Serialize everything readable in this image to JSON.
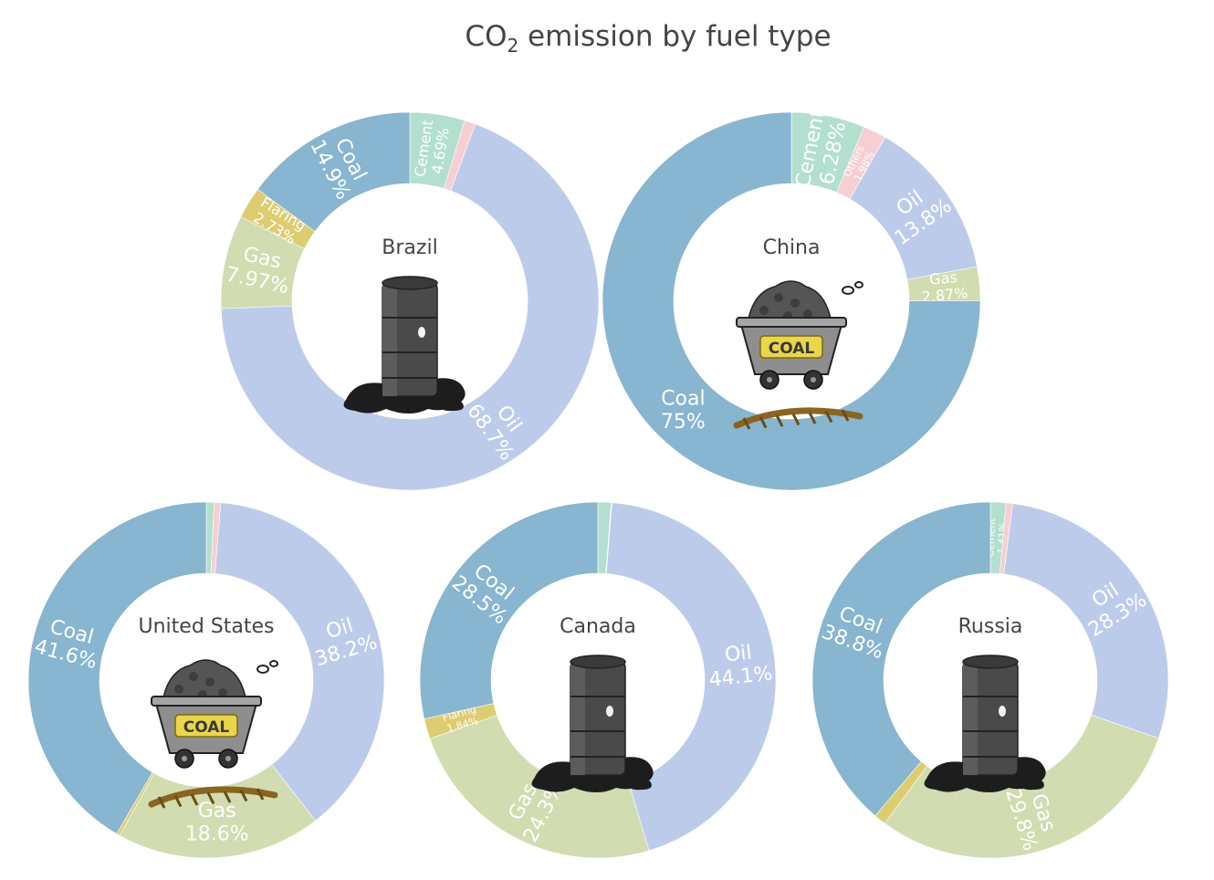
{
  "title": {
    "prefix": "CO",
    "subscript": "2",
    "suffix": " emission by fuel type"
  },
  "colors": {
    "Cement": "#b3dfcf",
    "Others": "#f6cfd2",
    "Oil": "#bdcbeb",
    "Gas": "#d1dcb0",
    "Flaring": "#ddcc70",
    "Coal": "#88b5cf"
  },
  "chart_data": [
    {
      "type": "pie",
      "hole": true,
      "country": "Brazil",
      "center_icon": "oil-barrel-icon",
      "slices": [
        {
          "label": "Cement",
          "value": 4.69,
          "text": "4.69%"
        },
        {
          "label": "Others",
          "value": 0.94,
          "text": ""
        },
        {
          "label": "Oil",
          "value": 68.7,
          "text": "68.7%"
        },
        {
          "label": "Gas",
          "value": 7.97,
          "text": "7.97%"
        },
        {
          "label": "Flaring",
          "value": 2.73,
          "text": "2.73%"
        },
        {
          "label": "Coal",
          "value": 14.9,
          "text": "14.9%"
        }
      ]
    },
    {
      "type": "pie",
      "hole": true,
      "country": "China",
      "center_icon": "coal-cart-icon",
      "slices": [
        {
          "label": "Cement",
          "value": 6.28,
          "text": "6.28%"
        },
        {
          "label": "Others",
          "value": 1.98,
          "text": "1.98%"
        },
        {
          "label": "Oil",
          "value": 13.8,
          "text": "13.8%"
        },
        {
          "label": "Gas",
          "value": 2.87,
          "text": "2.87%"
        },
        {
          "label": "Coal",
          "value": 75,
          "text": "75%"
        }
      ]
    },
    {
      "type": "pie",
      "hole": true,
      "country": "United States",
      "center_icon": "coal-cart-icon",
      "slices": [
        {
          "label": "Cement",
          "value": 0.7,
          "text": ""
        },
        {
          "label": "Others",
          "value": 0.6,
          "text": ""
        },
        {
          "label": "Oil",
          "value": 38.2,
          "text": "38.2%"
        },
        {
          "label": "Gas",
          "value": 18.6,
          "text": "18.6%"
        },
        {
          "label": "Flaring",
          "value": 0.3,
          "text": ""
        },
        {
          "label": "Coal",
          "value": 41.6,
          "text": "41.6%"
        }
      ]
    },
    {
      "type": "pie",
      "hole": true,
      "country": "Canada",
      "center_icon": "oil-barrel-icon",
      "slices": [
        {
          "label": "Cement",
          "value": 1.2,
          "text": ""
        },
        {
          "label": "Others",
          "value": 0.06,
          "text": ""
        },
        {
          "label": "Oil",
          "value": 44.1,
          "text": "44.1%"
        },
        {
          "label": "Gas",
          "value": 24.3,
          "text": "24.3%"
        },
        {
          "label": "Flaring",
          "value": 1.84,
          "text": "1.84%"
        },
        {
          "label": "Coal",
          "value": 28.5,
          "text": "28.5%"
        }
      ]
    },
    {
      "type": "pie",
      "hole": true,
      "country": "Russia",
      "center_icon": "oil-barrel-icon",
      "slices": [
        {
          "label": "Cement",
          "value": 1.41,
          "text": "1.41%"
        },
        {
          "label": "Others",
          "value": 0.6,
          "text": ""
        },
        {
          "label": "Oil",
          "value": 28.3,
          "text": "28.3%"
        },
        {
          "label": "Gas",
          "value": 29.8,
          "text": "29.8%"
        },
        {
          "label": "Flaring",
          "value": 1.09,
          "text": ""
        },
        {
          "label": "Coal",
          "value": 38.8,
          "text": "38.8%"
        }
      ]
    }
  ]
}
